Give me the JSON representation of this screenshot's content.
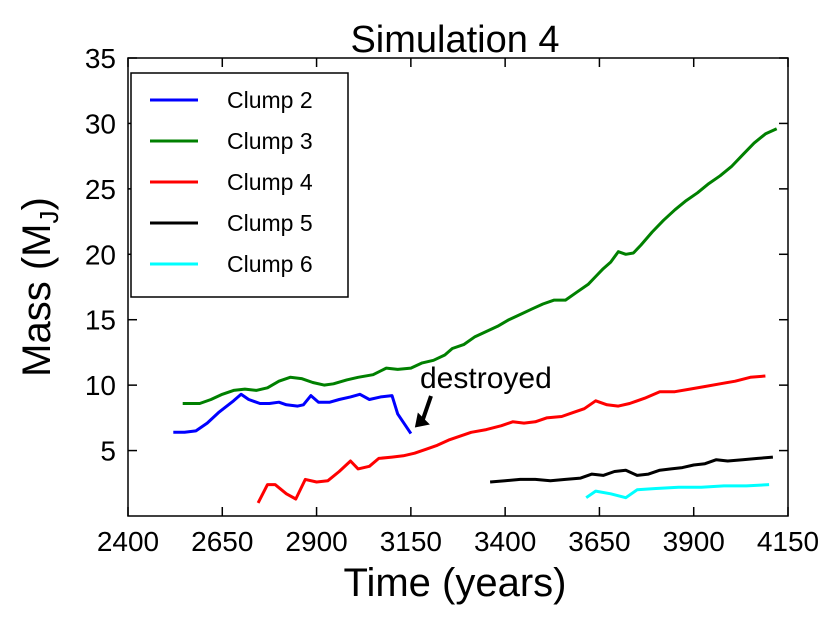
{
  "chart_data": {
    "type": "line",
    "title": "Simulation 4",
    "xlabel": "Time (years)",
    "ylabel": "Mass (M",
    "ylabel_subscript": "J",
    "ylabel_close": ")",
    "xlim": [
      2400,
      4150
    ],
    "ylim": [
      0,
      35
    ],
    "xticks": [
      2400,
      2650,
      2900,
      3150,
      3400,
      3650,
      3900,
      4150
    ],
    "yticks": [
      5,
      10,
      15,
      20,
      25,
      30,
      35
    ],
    "grid": false,
    "legend_position": "top-left",
    "annotation": {
      "text": "destroyed",
      "points_to": {
        "x": 3150,
        "y": 6.3
      }
    },
    "series": [
      {
        "name": "Clump 2",
        "color": "#0000ff",
        "points": [
          [
            2520,
            6.4
          ],
          [
            2550,
            6.4
          ],
          [
            2580,
            6.5
          ],
          [
            2610,
            7.1
          ],
          [
            2640,
            7.9
          ],
          [
            2680,
            8.8
          ],
          [
            2700,
            9.3
          ],
          [
            2720,
            8.9
          ],
          [
            2750,
            8.6
          ],
          [
            2775,
            8.6
          ],
          [
            2800,
            8.7
          ],
          [
            2820,
            8.5
          ],
          [
            2850,
            8.4
          ],
          [
            2865,
            8.5
          ],
          [
            2885,
            9.2
          ],
          [
            2905,
            8.7
          ],
          [
            2935,
            8.7
          ],
          [
            2960,
            8.9
          ],
          [
            2990,
            9.1
          ],
          [
            3015,
            9.3
          ],
          [
            3040,
            8.9
          ],
          [
            3070,
            9.1
          ],
          [
            3100,
            9.2
          ],
          [
            3115,
            7.8
          ],
          [
            3150,
            6.3
          ]
        ]
      },
      {
        "name": "Clump 3",
        "color": "#008000",
        "points": [
          [
            2545,
            8.6
          ],
          [
            2590,
            8.6
          ],
          [
            2620,
            8.9
          ],
          [
            2650,
            9.3
          ],
          [
            2680,
            9.6
          ],
          [
            2710,
            9.7
          ],
          [
            2740,
            9.6
          ],
          [
            2770,
            9.8
          ],
          [
            2800,
            10.3
          ],
          [
            2830,
            10.6
          ],
          [
            2860,
            10.5
          ],
          [
            2890,
            10.2
          ],
          [
            2920,
            10.0
          ],
          [
            2945,
            10.1
          ],
          [
            2980,
            10.4
          ],
          [
            3010,
            10.6
          ],
          [
            3050,
            10.8
          ],
          [
            3085,
            11.3
          ],
          [
            3115,
            11.2
          ],
          [
            3150,
            11.3
          ],
          [
            3180,
            11.7
          ],
          [
            3210,
            11.9
          ],
          [
            3240,
            12.3
          ],
          [
            3260,
            12.8
          ],
          [
            3290,
            13.1
          ],
          [
            3320,
            13.7
          ],
          [
            3350,
            14.1
          ],
          [
            3380,
            14.5
          ],
          [
            3410,
            15.0
          ],
          [
            3440,
            15.4
          ],
          [
            3470,
            15.8
          ],
          [
            3500,
            16.2
          ],
          [
            3530,
            16.5
          ],
          [
            3560,
            16.5
          ],
          [
            3590,
            17.1
          ],
          [
            3620,
            17.7
          ],
          [
            3640,
            18.3
          ],
          [
            3660,
            18.9
          ],
          [
            3680,
            19.4
          ],
          [
            3700,
            20.2
          ],
          [
            3720,
            20.0
          ],
          [
            3740,
            20.1
          ],
          [
            3760,
            20.7
          ],
          [
            3790,
            21.7
          ],
          [
            3820,
            22.6
          ],
          [
            3850,
            23.4
          ],
          [
            3880,
            24.1
          ],
          [
            3910,
            24.7
          ],
          [
            3940,
            25.4
          ],
          [
            3970,
            26.0
          ],
          [
            4000,
            26.7
          ],
          [
            4030,
            27.6
          ],
          [
            4060,
            28.5
          ],
          [
            4090,
            29.2
          ],
          [
            4120,
            29.6
          ]
        ]
      },
      {
        "name": "Clump 4",
        "color": "#ff0000",
        "points": [
          [
            2745,
            1.0
          ],
          [
            2770,
            2.4
          ],
          [
            2790,
            2.4
          ],
          [
            2820,
            1.7
          ],
          [
            2845,
            1.3
          ],
          [
            2870,
            2.8
          ],
          [
            2900,
            2.6
          ],
          [
            2930,
            2.7
          ],
          [
            2960,
            3.4
          ],
          [
            2990,
            4.2
          ],
          [
            3010,
            3.6
          ],
          [
            3040,
            3.8
          ],
          [
            3065,
            4.4
          ],
          [
            3100,
            4.5
          ],
          [
            3130,
            4.6
          ],
          [
            3160,
            4.8
          ],
          [
            3190,
            5.1
          ],
          [
            3220,
            5.4
          ],
          [
            3250,
            5.8
          ],
          [
            3280,
            6.1
          ],
          [
            3310,
            6.4
          ],
          [
            3350,
            6.6
          ],
          [
            3390,
            6.9
          ],
          [
            3420,
            7.2
          ],
          [
            3450,
            7.1
          ],
          [
            3480,
            7.2
          ],
          [
            3510,
            7.5
          ],
          [
            3550,
            7.6
          ],
          [
            3580,
            7.9
          ],
          [
            3610,
            8.2
          ],
          [
            3640,
            8.8
          ],
          [
            3670,
            8.5
          ],
          [
            3700,
            8.4
          ],
          [
            3730,
            8.6
          ],
          [
            3770,
            9.0
          ],
          [
            3810,
            9.5
          ],
          [
            3850,
            9.5
          ],
          [
            3890,
            9.7
          ],
          [
            3930,
            9.9
          ],
          [
            3970,
            10.1
          ],
          [
            4010,
            10.3
          ],
          [
            4050,
            10.6
          ],
          [
            4090,
            10.7
          ]
        ]
      },
      {
        "name": "Clump 5",
        "color": "#000000",
        "points": [
          [
            3360,
            2.6
          ],
          [
            3400,
            2.7
          ],
          [
            3440,
            2.8
          ],
          [
            3480,
            2.8
          ],
          [
            3520,
            2.7
          ],
          [
            3560,
            2.8
          ],
          [
            3600,
            2.9
          ],
          [
            3630,
            3.2
          ],
          [
            3660,
            3.1
          ],
          [
            3690,
            3.4
          ],
          [
            3720,
            3.5
          ],
          [
            3750,
            3.1
          ],
          [
            3780,
            3.2
          ],
          [
            3810,
            3.5
          ],
          [
            3840,
            3.6
          ],
          [
            3870,
            3.7
          ],
          [
            3900,
            3.9
          ],
          [
            3930,
            4.0
          ],
          [
            3960,
            4.3
          ],
          [
            3990,
            4.2
          ],
          [
            4030,
            4.3
          ],
          [
            4070,
            4.4
          ],
          [
            4110,
            4.5
          ]
        ]
      },
      {
        "name": "Clump 6",
        "color": "#00ffff",
        "points": [
          [
            3615,
            1.4
          ],
          [
            3640,
            1.9
          ],
          [
            3680,
            1.7
          ],
          [
            3720,
            1.4
          ],
          [
            3750,
            2.0
          ],
          [
            3800,
            2.1
          ],
          [
            3860,
            2.2
          ],
          [
            3920,
            2.2
          ],
          [
            3980,
            2.3
          ],
          [
            4040,
            2.3
          ],
          [
            4100,
            2.4
          ]
        ]
      }
    ]
  }
}
